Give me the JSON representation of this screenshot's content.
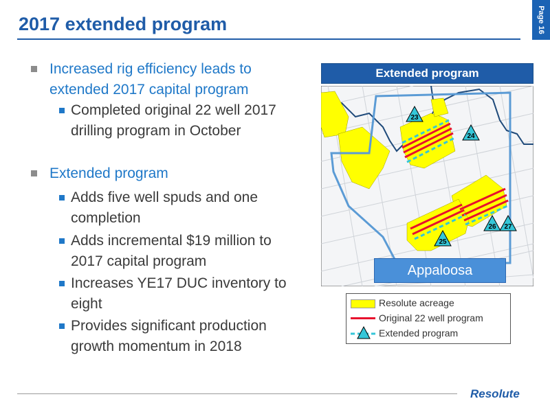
{
  "page": {
    "title": "2017 extended program",
    "page_label": "Page 16",
    "logo_text": "Resolute"
  },
  "bullets": [
    {
      "level": 1,
      "text": "Increased rig efficiency leads to extended 2017 capital program"
    },
    {
      "level": 2,
      "text": "Completed original 22 well 2017 drilling program in October"
    },
    {
      "level": 1,
      "text": "Extended program"
    },
    {
      "level": 2,
      "text": "Adds five well spuds and one completion"
    },
    {
      "level": 2,
      "text": "Adds incremental $19 million to 2017 capital program"
    },
    {
      "level": 2,
      "text": "Increases YE17 DUC inventory to eight"
    },
    {
      "level": 2,
      "text": "Provides significant production growth momentum in 2018"
    }
  ],
  "map": {
    "header": "Extended program",
    "area_label": "Appaloosa",
    "wells": [
      "23",
      "24",
      "25",
      "26",
      "27"
    ],
    "legend": [
      {
        "symbol": "yellow-box",
        "label": "Resolute acreage"
      },
      {
        "symbol": "red-line",
        "label": "Original 22 well program"
      },
      {
        "symbol": "cyan-dashed-triangle",
        "label": "Extended program"
      }
    ]
  },
  "colors": {
    "title_blue": "#1f5ca8",
    "bullet_blue": "#1f78c8",
    "acreage_yellow": "#ffff00",
    "original_red": "#e8112d",
    "extended_cyan": "#35c6d8"
  }
}
